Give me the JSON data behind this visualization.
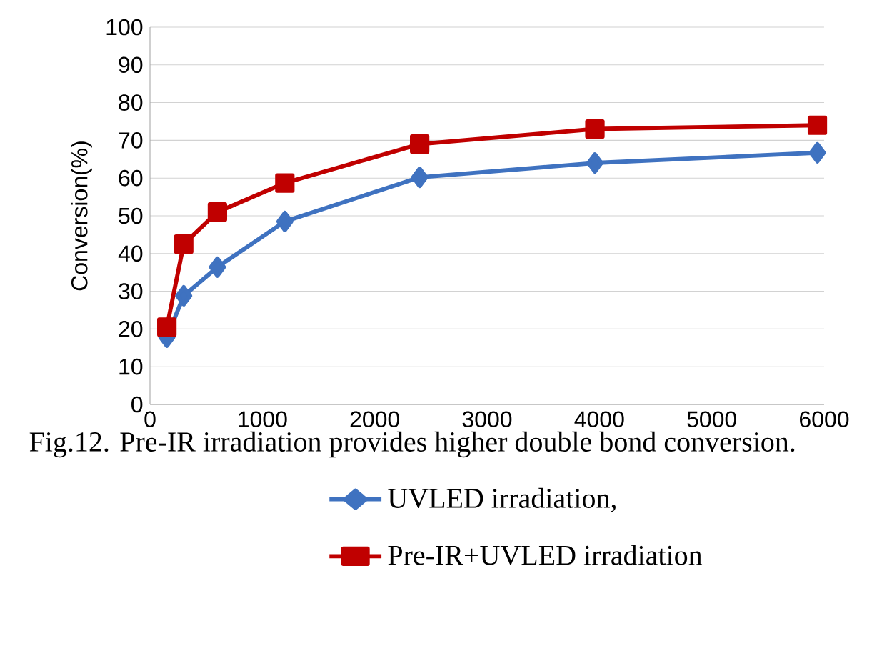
{
  "chart_data": {
    "type": "line",
    "ylabel": "Conversion(%)",
    "xlim": [
      0,
      6000
    ],
    "ylim": [
      0,
      100
    ],
    "xticks": [
      0,
      1000,
      2000,
      3000,
      4000,
      5000,
      6000
    ],
    "yticks": [
      0,
      10,
      20,
      30,
      40,
      50,
      60,
      70,
      80,
      90,
      100
    ],
    "grid": "y",
    "legend": "bottom",
    "annotations": [
      "Fig.12. Pre-IR irradiation provides higher double bond conversion."
    ],
    "series": [
      {
        "name": "UVLED irradiation,",
        "color": "#3f72c0",
        "marker": "diamond",
        "x": [
          150,
          300,
          600,
          1200,
          2400,
          3960,
          5940
        ],
        "values": [
          17.8,
          28.8,
          36.4,
          48.5,
          60.2,
          64,
          66.7
        ]
      },
      {
        "name": "Pre-IR+UVLED irradiation",
        "color": "#c00000",
        "marker": "square",
        "x": [
          150,
          300,
          600,
          1200,
          2400,
          3960,
          5940
        ],
        "values": [
          20.5,
          42.5,
          51,
          58.7,
          69,
          73,
          74
        ]
      }
    ]
  }
}
